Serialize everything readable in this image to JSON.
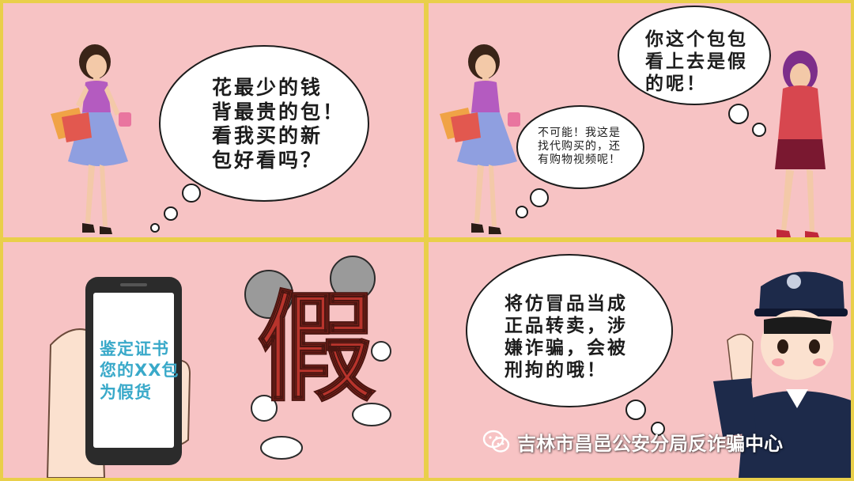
{
  "panels": [
    {
      "speech_lines": [
        "花最少的钱",
        "背最贵的包！",
        "看我买的新",
        "包好看吗？"
      ]
    },
    {
      "friend_lines": [
        "你这个包包",
        "看上去是假",
        "的呢！"
      ],
      "reply_lines": [
        "不可能！我这是",
        "找代购买的，还",
        "有购物视频呢！"
      ]
    },
    {
      "phone_lines": [
        "鉴定证书",
        "您的XX包",
        "为假货"
      ],
      "character_glyph": "假"
    },
    {
      "police_lines": [
        "将仿冒品当成",
        "正品转卖，涉",
        "嫌诈骗，会被",
        "刑拘的哦！"
      ]
    }
  ],
  "watermark": {
    "text": "吉林市昌邑公安分局反诈骗中心",
    "icon": "wechat-icon"
  },
  "colors": {
    "border": "#e9cf4a",
    "panel_bg": "#f7c3c4",
    "phone_text": "#39a9c9",
    "glyph_red": "#b8342c"
  }
}
